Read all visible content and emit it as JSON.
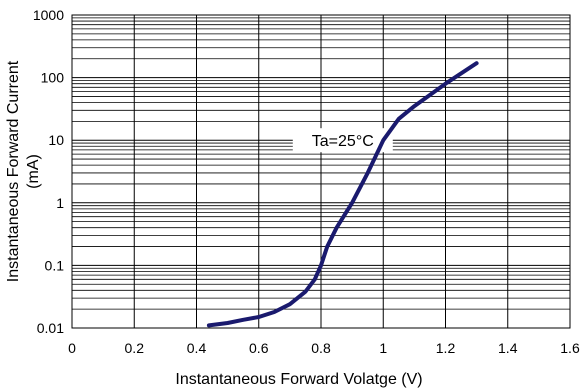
{
  "chart_data": {
    "type": "line",
    "title": "",
    "xlabel": "Instantaneous Forward Volatge (V)",
    "ylabel": "Instantaneous Forward Current",
    "ylabel_unit": "(mA)",
    "xlim": [
      0,
      1.6
    ],
    "ylim": [
      0.01,
      1000
    ],
    "yscale": "log",
    "grid": true,
    "x_ticks": [
      "0",
      "0.2",
      "0.4",
      "0.6",
      "0.8",
      "1",
      "1.2",
      "1.4",
      "1.6"
    ],
    "y_ticks": [
      "0.01",
      "0.1",
      "1",
      "10",
      "100",
      "1000"
    ],
    "annotation": "Ta=25°C",
    "line_color": "#1a1a6e",
    "series": [
      {
        "x": [
          0.44,
          0.5,
          0.55,
          0.6,
          0.65,
          0.7,
          0.75,
          0.78,
          0.8,
          0.82,
          0.85,
          0.9,
          0.95,
          1.0,
          1.05,
          1.1,
          1.2,
          1.3
        ],
        "y": [
          0.011,
          0.012,
          0.0135,
          0.015,
          0.018,
          0.024,
          0.038,
          0.06,
          0.1,
          0.2,
          0.4,
          1.0,
          3.0,
          10,
          22,
          35,
          80,
          170
        ]
      }
    ]
  }
}
